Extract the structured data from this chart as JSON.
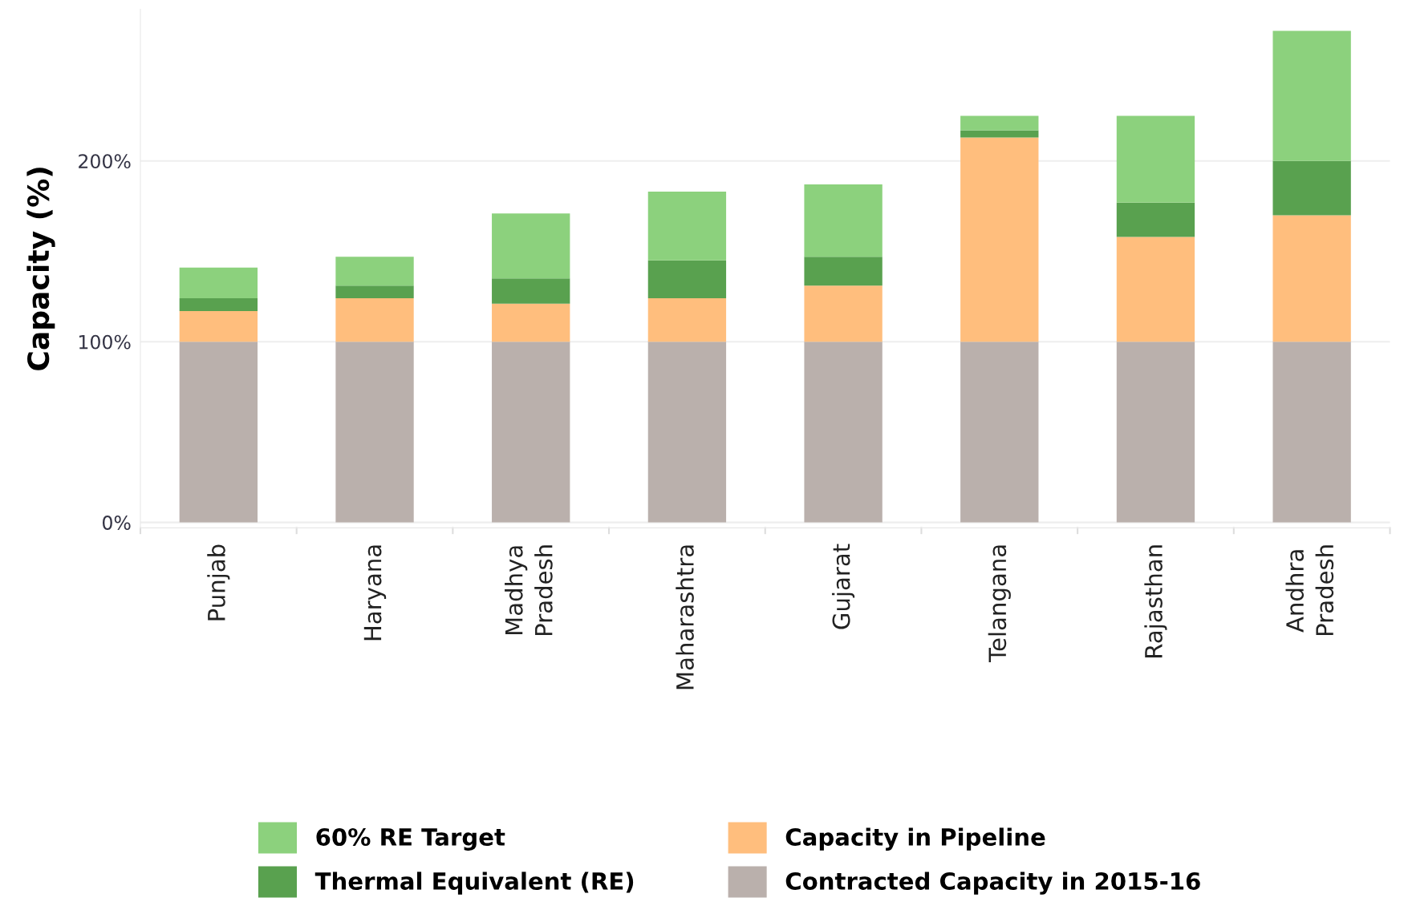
{
  "chart_data": {
    "type": "bar",
    "stacked": true,
    "ylabel": "Capacity (%)",
    "categories": [
      "Punjab",
      "Haryana",
      "Madhya Pradesh",
      "Maharashtra",
      "Gujarat",
      "Telangana",
      "Rajasthan",
      "Andhra Pradesh"
    ],
    "series": [
      {
        "name": "Contracted Capacity in 2015-16",
        "color": "#bab0ac",
        "values": [
          100,
          100,
          100,
          100,
          100,
          100,
          100,
          100
        ]
      },
      {
        "name": "Capacity in Pipeline",
        "color": "#ffbe7d",
        "values": [
          17,
          24,
          21,
          24,
          31,
          113,
          58,
          70
        ]
      },
      {
        "name": "Thermal Equivalent (RE)",
        "color": "#59a14f",
        "values": [
          7,
          7,
          14,
          21,
          16,
          4,
          19,
          30
        ]
      },
      {
        "name": "60% RE Target",
        "color": "#8cd17d",
        "values": [
          17,
          16,
          36,
          38,
          40,
          8,
          48,
          72
        ]
      }
    ],
    "ylim": [
      -3,
      284
    ],
    "yticks": [
      {
        "value": 0,
        "label": "0%"
      },
      {
        "value": 100,
        "label": "100%"
      },
      {
        "value": 200,
        "label": "200%"
      }
    ],
    "grid": "y",
    "legend": "bottom"
  }
}
